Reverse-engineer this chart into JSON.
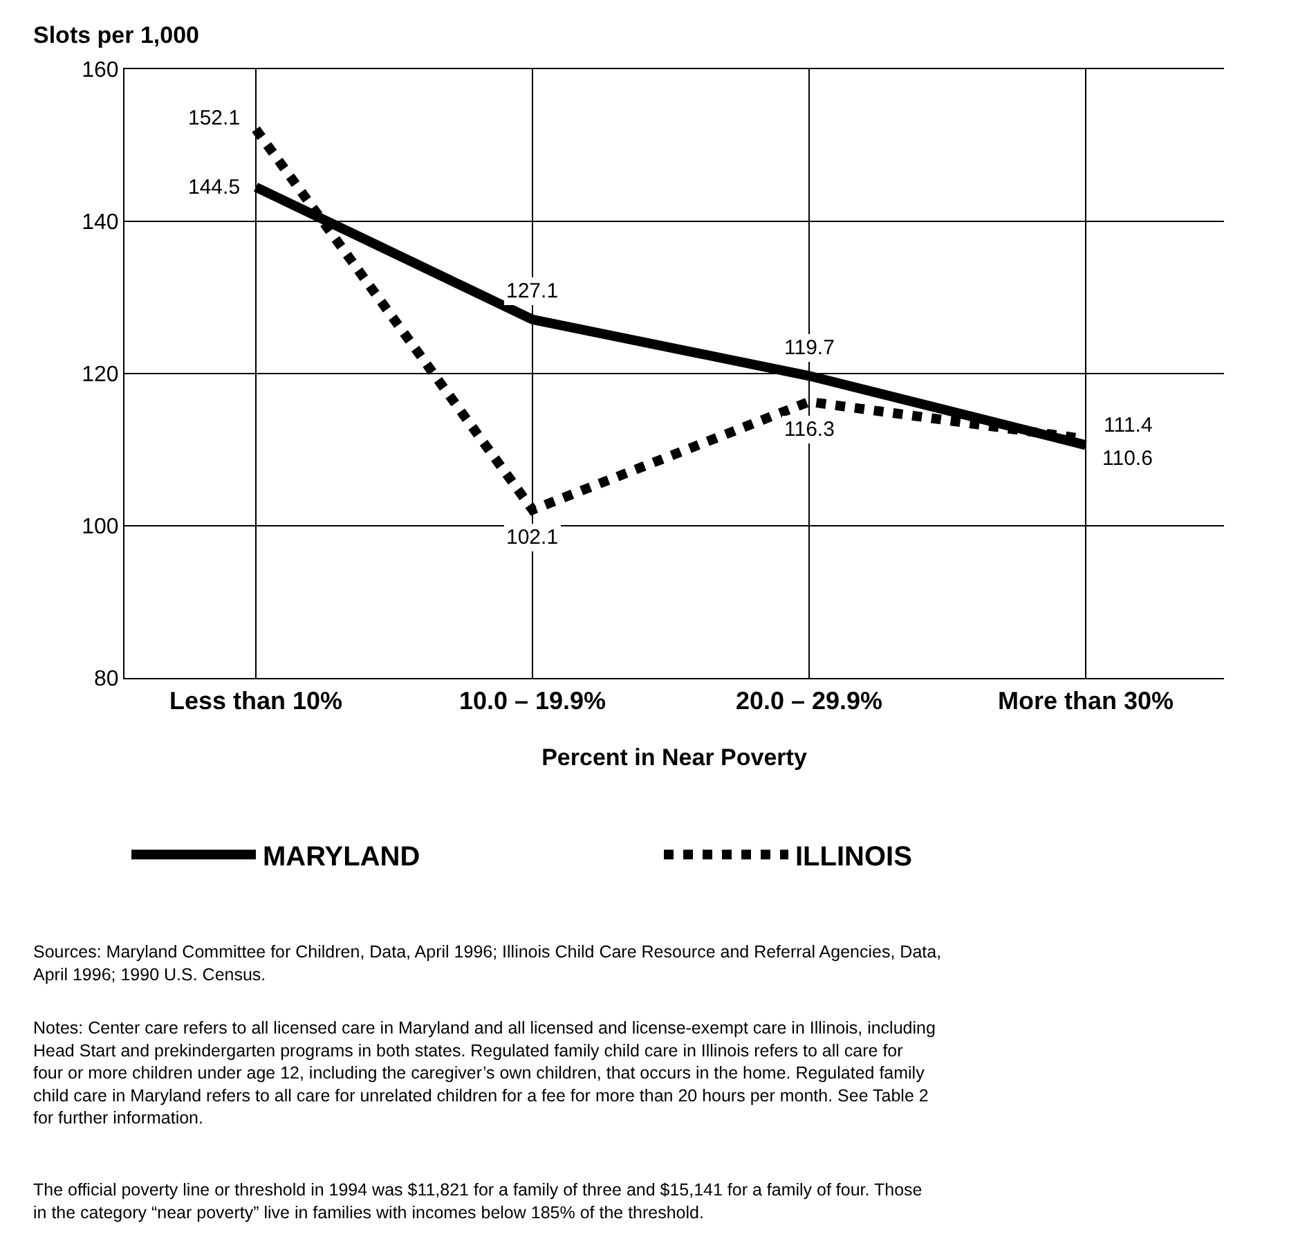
{
  "chart_data": {
    "type": "line",
    "ylabel": "Slots per 1,000",
    "xlabel": "Percent in Near Poverty",
    "categories": [
      "Less than 10%",
      "10.0 – 19.9%",
      "20.0 – 29.9%",
      "More than 30%"
    ],
    "series": [
      {
        "name": "MARYLAND",
        "color": "#000000",
        "values": [
          144.5,
          127.1,
          119.7,
          110.6
        ],
        "line_style": "solid"
      },
      {
        "name": "ILLINOIS",
        "color": "#000000",
        "values": [
          152.1,
          102.1,
          116.3,
          111.4
        ],
        "line_style": "dotted"
      }
    ],
    "ylim": [
      80,
      160
    ],
    "yticks": [
      80,
      100,
      120,
      140,
      160
    ],
    "grid": true,
    "legend": "bottom",
    "marker": "none",
    "data_labels": true,
    "annotations": [
      "Sources: Maryland Committee for Children, Data, April 1996; Illinois Child Care Resource and Referral Agencies, Data, April 1996; 1990 U.S. Census.",
      "Notes: Center care refers to all licensed care in Maryland and all licensed and license-exempt care in Illinois, including Head Start and prekindergarten programs in both states. Regulated family child care in Illinois refers to all care for four or more children under age 12, including the caregiver’s own children, that occurs in the home. Regulated family child care in Maryland refers to all care for unrelated children for a fee for more than 20 hours per month. See Table 2 for further information.",
      "The official poverty line or threshold in 1994 was $11,821 for a family of three and $15,141 for a family of four. Those in the category “near poverty” live in families with incomes below 185% of the threshold."
    ]
  }
}
